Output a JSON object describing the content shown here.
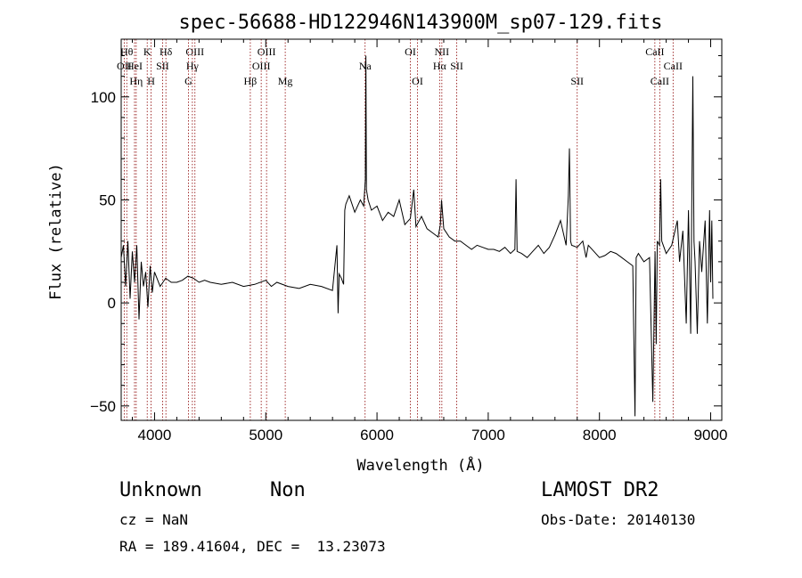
{
  "chart_data": {
    "type": "line",
    "title": "spec-56688-HD122946N143900M_sp07-129.fits",
    "xlabel": "Wavelength (Å)",
    "ylabel": "Flux (relative)",
    "xlim": [
      3700,
      9100
    ],
    "ylim": [
      -57,
      128
    ],
    "xticks": [
      4000,
      5000,
      6000,
      7000,
      8000,
      9000
    ],
    "yticks": [
      -50,
      0,
      50,
      100
    ],
    "grid": false,
    "series": [
      {
        "x": [
          3700,
          3720,
          3740,
          3760,
          3780,
          3800,
          3820,
          3840,
          3860,
          3880,
          3900,
          3920,
          3940,
          3960,
          3980,
          4000,
          4050,
          4100,
          4150,
          4200,
          4250,
          4300,
          4350,
          4400,
          4450,
          4500,
          4600,
          4700,
          4800,
          4900,
          5000,
          5050,
          5100,
          5200,
          5300,
          5400,
          5500,
          5600,
          5640,
          5650,
          5660,
          5680,
          5700,
          5710,
          5720,
          5750,
          5800,
          5850,
          5880,
          5895,
          5900,
          5905,
          5920,
          5950,
          6000,
          6050,
          6100,
          6150,
          6200,
          6250,
          6300,
          6330,
          6350,
          6400,
          6450,
          6500,
          6550,
          6570,
          6580,
          6600,
          6650,
          6700,
          6750,
          6800,
          6850,
          6900,
          6950,
          7000,
          7050,
          7100,
          7150,
          7200,
          7240,
          7250,
          7260,
          7300,
          7350,
          7400,
          7450,
          7500,
          7550,
          7600,
          7650,
          7700,
          7720,
          7730,
          7740,
          7750,
          7800,
          7850,
          7880,
          7900,
          7950,
          8000,
          8050,
          8100,
          8150,
          8200,
          8250,
          8300,
          8320,
          8330,
          8350,
          8400,
          8450,
          8480,
          8500,
          8510,
          8520,
          8540,
          8550,
          8560,
          8600,
          8650,
          8700,
          8720,
          8750,
          8780,
          8800,
          8820,
          8840,
          8850,
          8860,
          8880,
          8900,
          8920,
          8950,
          8970,
          8990,
          9000,
          9010,
          9020
        ],
        "y": [
          22,
          28,
          8,
          30,
          2,
          25,
          10,
          28,
          -8,
          20,
          8,
          15,
          -2,
          18,
          5,
          15,
          8,
          12,
          10,
          10,
          11,
          13,
          12,
          10,
          11,
          10,
          9,
          10,
          8,
          9,
          11,
          8,
          10,
          8,
          7,
          9,
          8,
          6,
          28,
          -5,
          14,
          12,
          9,
          45,
          48,
          52,
          44,
          50,
          47,
          60,
          120,
          55,
          50,
          45,
          47,
          40,
          44,
          42,
          50,
          38,
          41,
          55,
          37,
          42,
          36,
          34,
          32,
          38,
          50,
          36,
          32,
          30,
          30,
          28,
          26,
          28,
          27,
          26,
          26,
          25,
          27,
          24,
          26,
          60,
          25,
          24,
          22,
          25,
          28,
          24,
          27,
          33,
          40,
          28,
          52,
          75,
          30,
          28,
          27,
          30,
          22,
          28,
          25,
          22,
          23,
          25,
          24,
          22,
          20,
          18,
          -55,
          22,
          24,
          20,
          22,
          -48,
          25,
          -20,
          30,
          28,
          60,
          30,
          24,
          28,
          40,
          20,
          35,
          -10,
          45,
          -15,
          110,
          30,
          20,
          -15,
          30,
          15,
          40,
          -10,
          45,
          10,
          40,
          2
        ]
      }
    ],
    "line_markers": [
      {
        "label": "OII",
        "wl": 3727,
        "row": 2
      },
      {
        "label": "Hθ",
        "wl": 3750,
        "row": 1
      },
      {
        "label": "Hη",
        "wl": 3835,
        "row": 3
      },
      {
        "label": "HeI",
        "wl": 3820,
        "row": 2
      },
      {
        "label": "K",
        "wl": 3934,
        "row": 1
      },
      {
        "label": "SII",
        "wl": 4072,
        "row": 2
      },
      {
        "label": "H",
        "wl": 3969,
        "row": 3
      },
      {
        "label": "Hδ",
        "wl": 4102,
        "row": 1
      },
      {
        "label": "OIII",
        "wl": 4363,
        "row": 1
      },
      {
        "label": "Hγ",
        "wl": 4340,
        "row": 2
      },
      {
        "label": "G",
        "wl": 4305,
        "row": 3
      },
      {
        "label": "Hβ",
        "wl": 4861,
        "row": 3
      },
      {
        "label": "OIII",
        "wl": 5007,
        "row": 1
      },
      {
        "label": "OIII",
        "wl": 4959,
        "row": 2
      },
      {
        "label": "Mg",
        "wl": 5175,
        "row": 3
      },
      {
        "label": "Na",
        "wl": 5893,
        "row": 2
      },
      {
        "label": "OI",
        "wl": 6300,
        "row": 1
      },
      {
        "label": "OI",
        "wl": 6364,
        "row": 3
      },
      {
        "label": "NII",
        "wl": 6583,
        "row": 1
      },
      {
        "label": "Hα",
        "wl": 6563,
        "row": 2
      },
      {
        "label": "SII",
        "wl": 6717,
        "row": 2
      },
      {
        "label": "SII",
        "wl": 7800,
        "row": 3
      },
      {
        "label": "CaII",
        "wl": 8498,
        "row": 1
      },
      {
        "label": "CaII",
        "wl": 8662,
        "row": 2
      },
      {
        "label": "CaII",
        "wl": 8542,
        "row": 3
      }
    ]
  },
  "info": {
    "object_class": "Unknown",
    "object_subclass": "Non",
    "cz": "cz = NaN",
    "coords": "RA = 189.41604, DEC =  13.23073",
    "survey": "LAMOST DR2",
    "obs_date": "Obs-Date: 20140130"
  }
}
